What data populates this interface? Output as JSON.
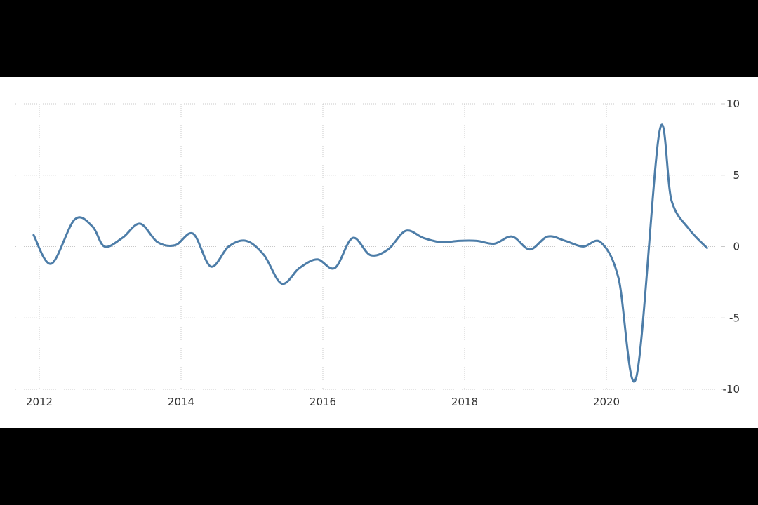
{
  "colors": {
    "background": "#ffffff",
    "letterbox": "#000000",
    "grid": "#c8c8c8",
    "line": "#4d7da8",
    "text": "#333333"
  },
  "chart_data": {
    "type": "line",
    "title": "",
    "xlabel": "",
    "ylabel": "",
    "grid": true,
    "xlim": [
      2011.9,
      2021.6
    ],
    "ylim": [
      -10,
      10
    ],
    "x_ticks": [
      2012,
      2014,
      2016,
      2018,
      2020
    ],
    "x_tick_labels": [
      "2012",
      "2014",
      "2016",
      "2018",
      "2020"
    ],
    "y_ticks": [
      10,
      5,
      0,
      -5,
      -10
    ],
    "y_tick_labels": [
      "10",
      "5",
      "0",
      "-5",
      "-10"
    ],
    "y_axis_position": "right",
    "series": [
      {
        "name": "",
        "x": [
          2011.92,
          2012.17,
          2012.5,
          2012.75,
          2012.92,
          2013.17,
          2013.42,
          2013.67,
          2013.92,
          2014.17,
          2014.42,
          2014.67,
          2014.92,
          2015.17,
          2015.42,
          2015.67,
          2015.92,
          2016.17,
          2016.42,
          2016.67,
          2016.92,
          2017.17,
          2017.42,
          2017.67,
          2017.92,
          2018.17,
          2018.42,
          2018.67,
          2018.92,
          2019.17,
          2019.42,
          2019.67,
          2019.92,
          2020.17,
          2020.42,
          2020.75,
          2020.92,
          2021.17,
          2021.42
        ],
        "y": [
          0.8,
          -1.2,
          1.9,
          1.4,
          0.0,
          0.6,
          1.6,
          0.3,
          0.1,
          0.9,
          -1.4,
          0.0,
          0.4,
          -0.6,
          -2.6,
          -1.5,
          -0.9,
          -1.5,
          0.6,
          -0.6,
          -0.2,
          1.1,
          0.6,
          0.3,
          0.4,
          0.4,
          0.2,
          0.7,
          -0.2,
          0.7,
          0.4,
          0.0,
          0.3,
          -2.2,
          -9.2,
          8.1,
          3.2,
          1.2,
          -0.1
        ]
      }
    ]
  }
}
